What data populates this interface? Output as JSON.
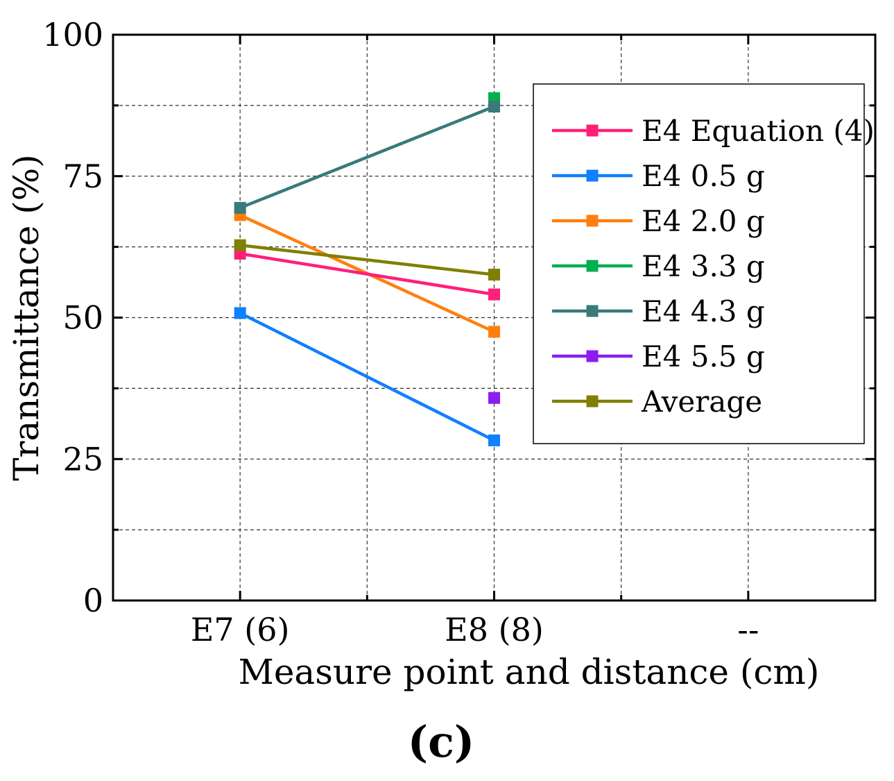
{
  "chart_data": {
    "type": "line",
    "panel_label": "(c)",
    "xlabel": "Measure point and distance (cm)",
    "ylabel": "Transmittance (%)",
    "categories": [
      "E7 (6)",
      "E8 (8)",
      "--"
    ],
    "ylim": [
      0,
      100
    ],
    "yticks": [
      0,
      25,
      50,
      75,
      100
    ],
    "grid": true,
    "legend_position": "top-right",
    "series": [
      {
        "name": "E4 Equation (4)",
        "color": "#ff1f7a",
        "values": [
          61.3,
          54.1,
          null
        ]
      },
      {
        "name": "E4 0.5 g",
        "color": "#0f80ff",
        "values": [
          50.8,
          28.3,
          null
        ]
      },
      {
        "name": "E4 2.0 g",
        "color": "#ff7f0e",
        "values": [
          68.1,
          47.5,
          null
        ]
      },
      {
        "name": "E4 3.3 g",
        "color": "#00b050",
        "values": [
          null,
          88.8,
          null
        ]
      },
      {
        "name": "E4 4.3 g",
        "color": "#3a7a7a",
        "values": [
          69.4,
          87.3,
          null
        ]
      },
      {
        "name": "E4 5.5 g",
        "color": "#8b1df2",
        "values": [
          null,
          35.8,
          null
        ]
      },
      {
        "name": "Average",
        "color": "#7f7f00",
        "values": [
          62.8,
          57.6,
          null
        ]
      }
    ]
  }
}
